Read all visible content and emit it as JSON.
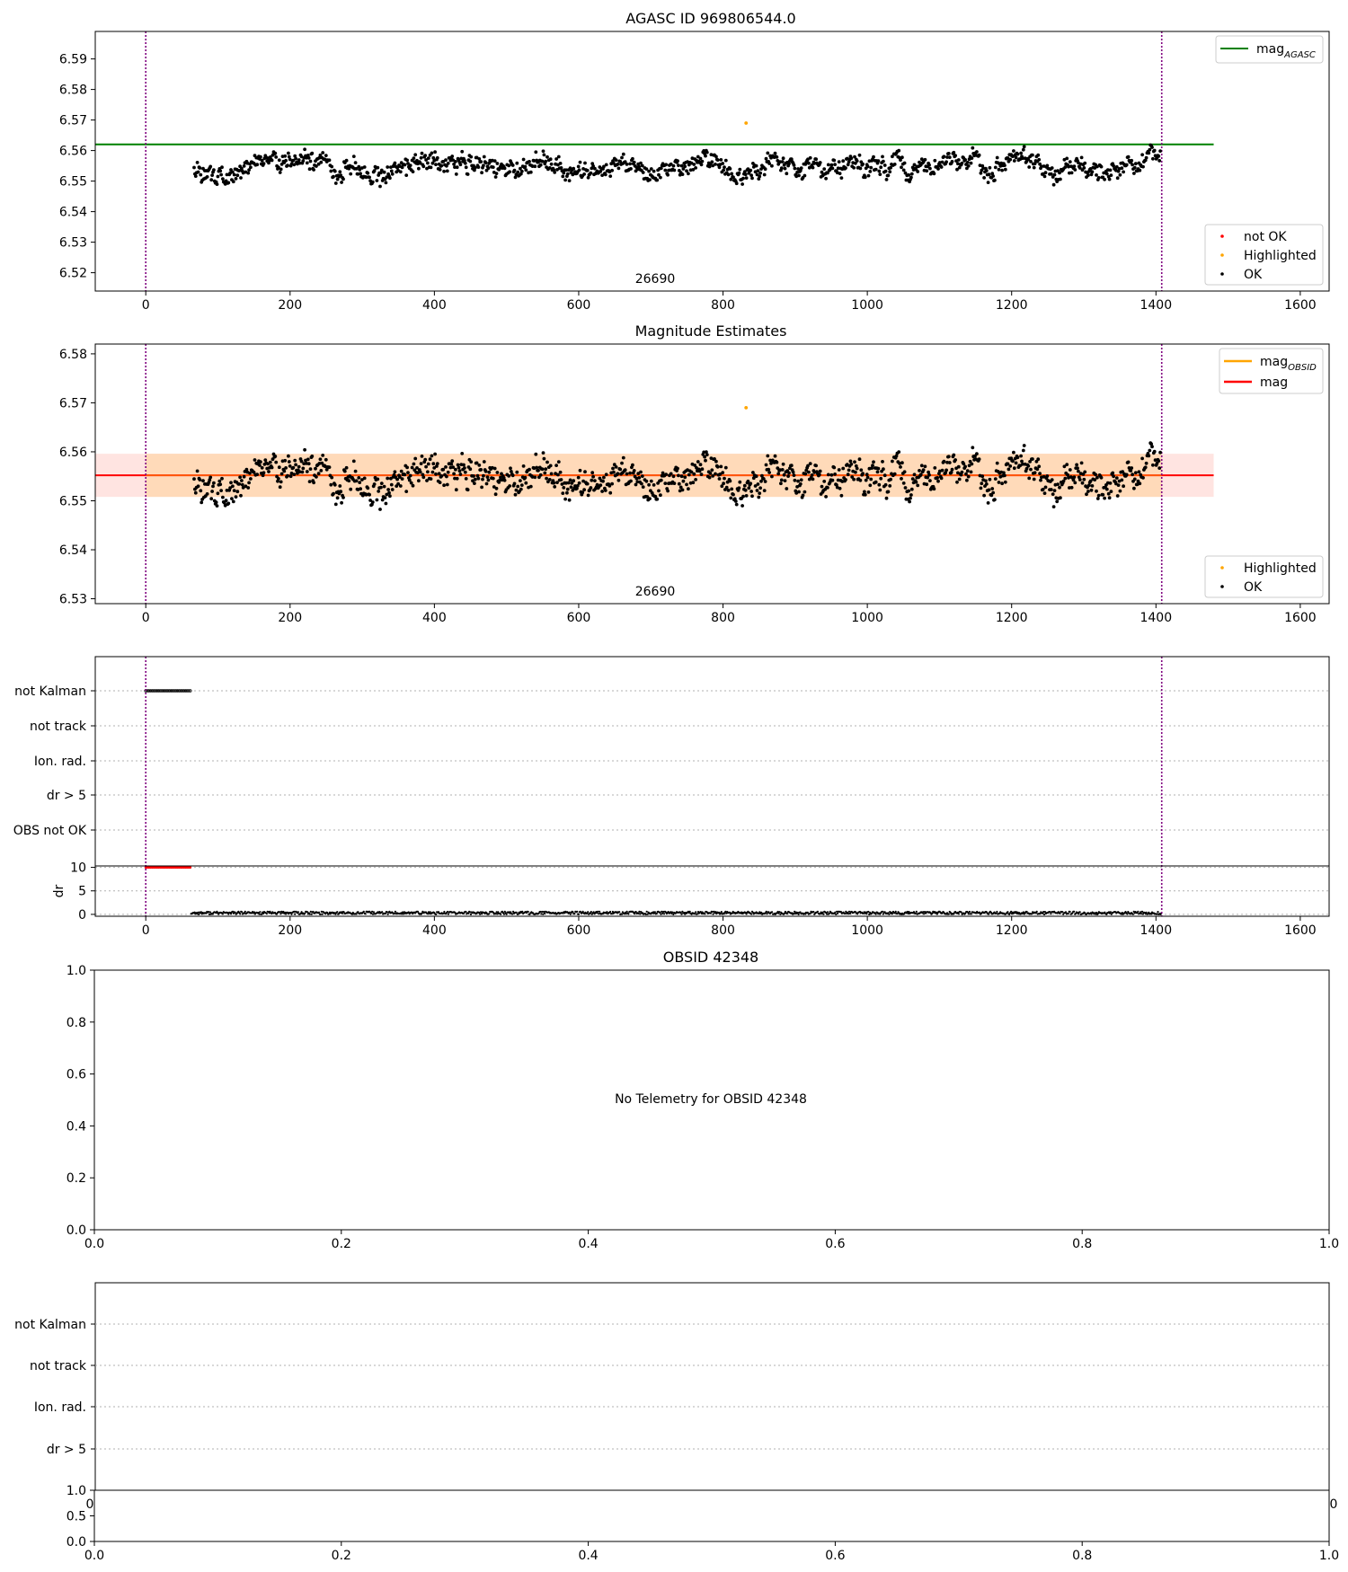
{
  "figure_colors": {
    "ok": "#000000",
    "not_ok": "#ff0000",
    "highlighted": "#ffa500",
    "mag_agasc": "#008000",
    "mag": "#ff0000",
    "mag_obsid": "#ffa500",
    "obs_span": "#800080",
    "band_inner": "#ffdab9",
    "band_outer": "#ffe4e1",
    "grid": "#b0b0b0"
  },
  "chart_data": [
    {
      "type": "scatter",
      "title": "AGASC ID 969806544.0",
      "xlim": [
        -70,
        1640
      ],
      "ylim": [
        6.514,
        6.599
      ],
      "xticks": [
        0,
        200,
        400,
        600,
        800,
        1000,
        1200,
        1400,
        1600
      ],
      "yticks": [
        "6.52",
        "6.53",
        "6.54",
        "6.55",
        "6.56",
        "6.57",
        "6.58",
        "6.59"
      ],
      "obs_span": [
        0,
        1408
      ],
      "obs_label": "26690",
      "mag_agasc": 6.562,
      "mag_agasc_xrange": [
        -70,
        1480
      ],
      "series_summary": {
        "name": "OK",
        "x_range": [
          67,
          1406
        ],
        "center": 6.555,
        "min": 6.5435,
        "max": 6.5675,
        "count": 1180
      },
      "highlighted": [
        [
          832,
          6.569
        ]
      ],
      "legend_lines": [
        {
          "label": "mag",
          "sub": "AGASC"
        }
      ],
      "legend_points": [
        "not OK",
        "Highlighted",
        "OK"
      ]
    },
    {
      "type": "scatter",
      "title": "Magnitude Estimates",
      "xlim": [
        -70,
        1640
      ],
      "ylim": [
        6.529,
        6.582
      ],
      "xticks": [
        0,
        200,
        400,
        600,
        800,
        1000,
        1200,
        1400,
        1600
      ],
      "yticks": [
        "6.53",
        "6.54",
        "6.55",
        "6.56",
        "6.57",
        "6.58"
      ],
      "obs_span": [
        0,
        1408
      ],
      "obs_label": "26690",
      "mag": 6.5552,
      "mag_band": [
        6.5508,
        6.5596
      ],
      "mag_band_xrange": [
        -70,
        1480
      ],
      "mag_obsid_xrange": [
        0,
        1408
      ],
      "highlighted": [
        [
          832,
          6.569
        ]
      ],
      "legend_lines": [
        {
          "label": "mag",
          "sub": "OBSID"
        },
        {
          "label": "mag",
          "sub": ""
        }
      ],
      "legend_points": [
        "Highlighted",
        "OK"
      ]
    },
    {
      "type": "scatter",
      "title": "",
      "xlim": [
        -70,
        1640
      ],
      "xticks": [
        0,
        200,
        400,
        600,
        800,
        1000,
        1200,
        1400,
        1600
      ],
      "flag_rows": [
        "not Kalman",
        "not track",
        "Ion. rad.",
        "dr > 5",
        "OBS not OK"
      ],
      "not_kalman_x_range": [
        0,
        63
      ],
      "dr_label": "dr",
      "dr_ylim": [
        -0.4,
        10.3
      ],
      "dr_yticks": [
        "0",
        "5",
        "10"
      ],
      "dr_flagged": {
        "x_range": [
          0,
          63
        ],
        "value": 10
      },
      "dr_ok": {
        "x_range": [
          63,
          1408
        ],
        "value": 0.3
      },
      "obs_span": [
        0,
        1408
      ]
    },
    {
      "type": "scatter",
      "title": "OBSID 42348",
      "xlim": [
        0,
        1
      ],
      "ylim": [
        0,
        1
      ],
      "xticks": [
        "0.0",
        "0.2",
        "0.4",
        "0.6",
        "0.8",
        "1.0"
      ],
      "yticks": [
        "0.0",
        "0.2",
        "0.4",
        "0.6",
        "0.8",
        "1.0"
      ],
      "message": "No Telemetry for OBSID 42348"
    },
    {
      "type": "scatter",
      "title": "",
      "flag_rows": [
        "not Kalman",
        "not track",
        "Ion. rad.",
        "dr > 5"
      ],
      "overlap_tick_left": "0",
      "overlap_tick_right": "0",
      "sub_xticks": [
        "0.0",
        "0.2",
        "0.4",
        "0.6",
        "0.8",
        "1.0"
      ],
      "sub_yticks": [
        "0.0",
        "0.5",
        "1.0"
      ]
    }
  ]
}
